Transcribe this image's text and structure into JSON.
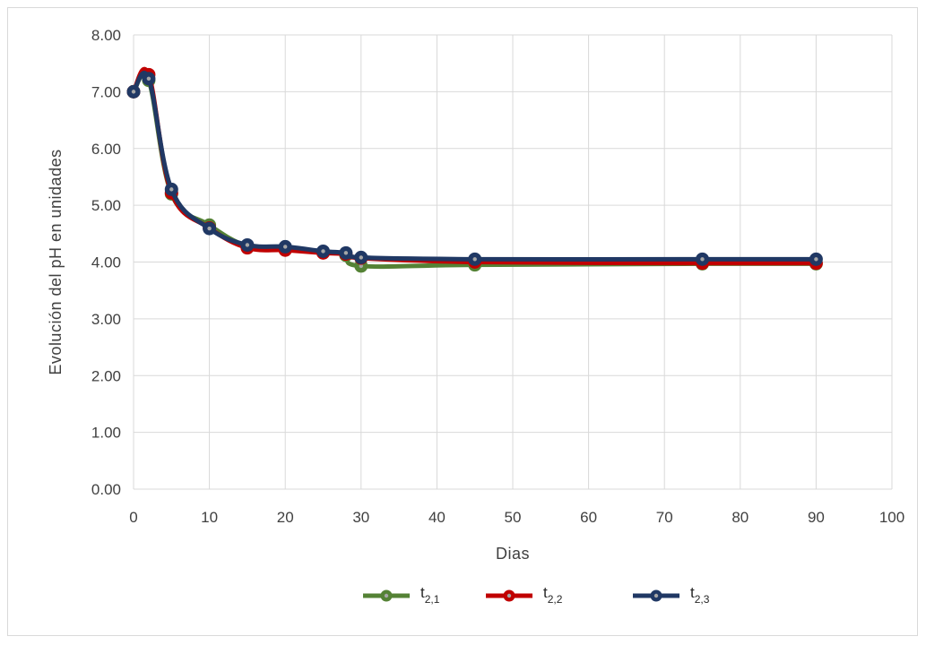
{
  "chart_data": {
    "type": "line",
    "title": "",
    "xlabel": "Dias",
    "ylabel": "Evolución del pH en unidades",
    "xlim": [
      0,
      100
    ],
    "ylim": [
      0,
      8
    ],
    "x_ticks": [
      0,
      10,
      20,
      30,
      40,
      50,
      60,
      70,
      80,
      90,
      100
    ],
    "y_ticks": [
      "0.00",
      "1.00",
      "2.00",
      "3.00",
      "4.00",
      "5.00",
      "6.00",
      "7.00",
      "8.00"
    ],
    "grid": true,
    "legend_position": "bottom",
    "smooth": true,
    "series": [
      {
        "name": "t2,1",
        "label_main": "t",
        "label_sub": "2,1",
        "color": "#548235",
        "x": [
          0,
          2,
          5,
          10,
          15,
          20,
          25,
          28,
          30,
          45,
          75,
          90
        ],
        "y": [
          7.0,
          7.2,
          5.2,
          4.65,
          4.28,
          4.24,
          4.18,
          4.12,
          3.93,
          3.95,
          3.97,
          3.97
        ]
      },
      {
        "name": "t2,2",
        "label_main": "t",
        "label_sub": "2,2",
        "color": "#c00000",
        "x": [
          0,
          2,
          5,
          10,
          15,
          20,
          25,
          28,
          30,
          45,
          75,
          90
        ],
        "y": [
          7.0,
          7.3,
          5.22,
          4.6,
          4.25,
          4.21,
          4.16,
          4.14,
          4.07,
          4.0,
          3.98,
          3.98
        ]
      },
      {
        "name": "t2,3",
        "label_main": "t",
        "label_sub": "2,3",
        "color": "#203864",
        "x": [
          0,
          2,
          5,
          10,
          15,
          20,
          25,
          28,
          30,
          45,
          75,
          90
        ],
        "y": [
          7.0,
          7.23,
          5.28,
          4.59,
          4.3,
          4.27,
          4.19,
          4.16,
          4.08,
          4.05,
          4.05,
          4.05
        ]
      }
    ]
  }
}
